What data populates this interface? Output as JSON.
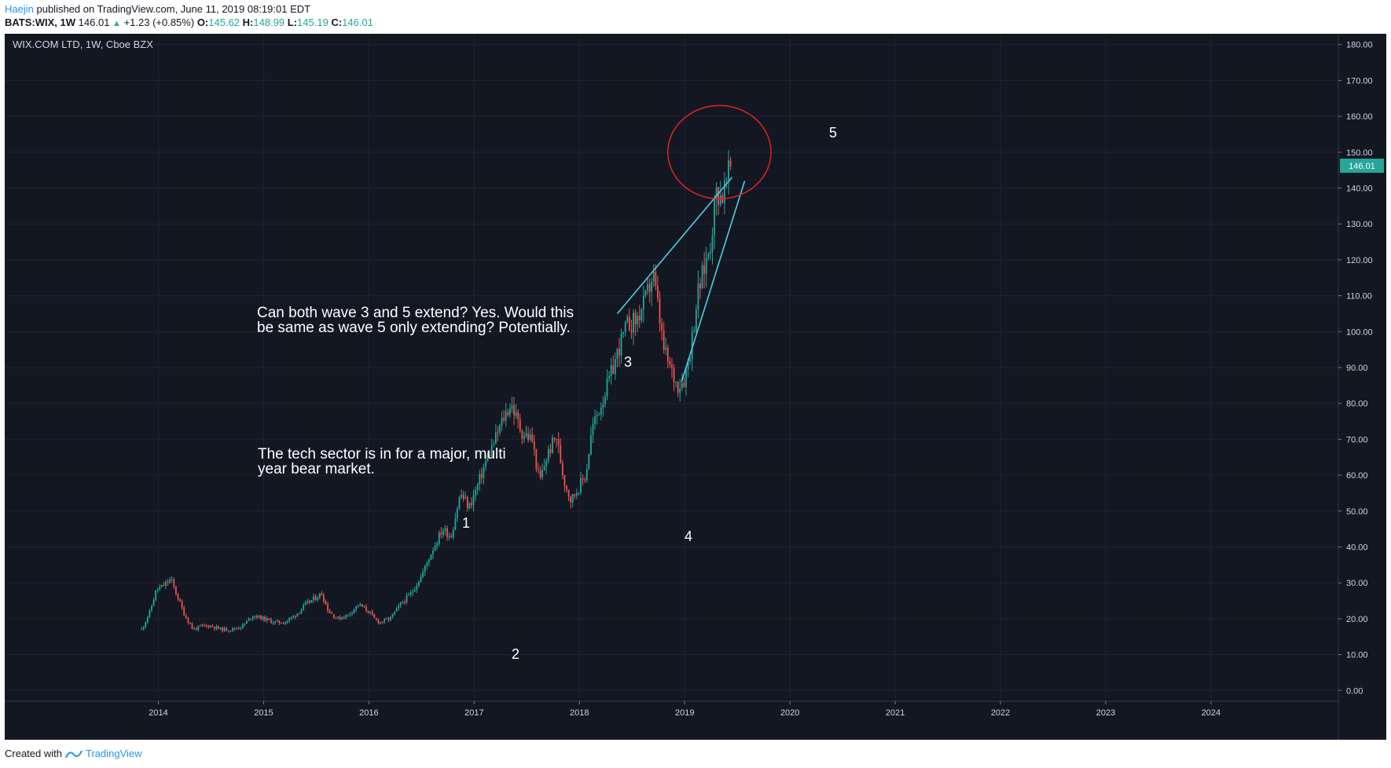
{
  "header": {
    "author": "Haejin",
    "published_text": "published on TradingView.com, June 11, 2019 08:19:01 EDT",
    "symbol": "BATS:WIX, 1W",
    "last_price": "146.01",
    "change_text": "+1.23 (+0.85%)",
    "o_label": "O:",
    "o_value": "145.62",
    "h_label": "H:",
    "h_value": "148.99",
    "l_label": "L:",
    "l_value": "145.19",
    "c_label": "C:",
    "c_value": "146.01"
  },
  "chart_legend": "WIX.COM LTD, 1W, Cboe BZX",
  "price_tag": "146.01",
  "annotations": {
    "wave_1": "1",
    "wave_2": "2",
    "wave_3": "3",
    "wave_4": "4",
    "wave_5": "5",
    "text_1_line_1": "Can both wave 3 and 5 extend? Yes. Would this",
    "text_1_line_2": "be same as wave 5 only extending? Potentially.",
    "text_2_line_1": "The tech sector is in for a major, multi",
    "text_2_line_2": "year bear market."
  },
  "footer": {
    "created_with": "Created with",
    "brand": "TradingView"
  },
  "colors": {
    "background": "#131722",
    "up": "#26a69a",
    "down": "#ef5350",
    "trendline": "#4dd0e1",
    "circle": "#e02424"
  },
  "chart_data": {
    "type": "candlestick",
    "title": "WIX.COM LTD, 1W, Cboe BZX",
    "x_ticks": [
      "2014",
      "2015",
      "2016",
      "2017",
      "2018",
      "2019",
      "2020",
      "2021",
      "2022",
      "2023",
      "2024"
    ],
    "y_ticks": [
      "0.00",
      "10.00",
      "20.00",
      "30.00",
      "40.00",
      "50.00",
      "60.00",
      "70.00",
      "80.00",
      "90.00",
      "100.00",
      "110.00",
      "120.00",
      "130.00",
      "140.00",
      "150.00",
      "160.00",
      "170.00",
      "180.00"
    ],
    "ylim": [
      -3,
      183
    ],
    "xlim": [
      2012.54,
      2025.21
    ],
    "price_path": [
      [
        2013.84,
        17
      ],
      [
        2013.92,
        22
      ],
      [
        2013.98,
        28
      ],
      [
        2014.04,
        29
      ],
      [
        2014.12,
        31
      ],
      [
        2014.17,
        27
      ],
      [
        2014.25,
        21
      ],
      [
        2014.33,
        17
      ],
      [
        2014.42,
        18
      ],
      [
        2014.5,
        18
      ],
      [
        2014.6,
        17
      ],
      [
        2014.7,
        17
      ],
      [
        2014.8,
        18
      ],
      [
        2014.9,
        21
      ],
      [
        2015.0,
        20
      ],
      [
        2015.1,
        19
      ],
      [
        2015.2,
        19
      ],
      [
        2015.3,
        21
      ],
      [
        2015.4,
        24
      ],
      [
        2015.5,
        26
      ],
      [
        2015.55,
        27
      ],
      [
        2015.62,
        22
      ],
      [
        2015.7,
        20
      ],
      [
        2015.8,
        21
      ],
      [
        2015.9,
        24
      ],
      [
        2016.0,
        22
      ],
      [
        2016.05,
        20
      ],
      [
        2016.1,
        19
      ],
      [
        2016.2,
        20
      ],
      [
        2016.3,
        24
      ],
      [
        2016.4,
        27
      ],
      [
        2016.5,
        32
      ],
      [
        2016.6,
        39
      ],
      [
        2016.7,
        45
      ],
      [
        2016.78,
        43
      ],
      [
        2016.87,
        55
      ],
      [
        2016.95,
        51
      ],
      [
        2017.02,
        56
      ],
      [
        2017.1,
        63
      ],
      [
        2017.2,
        70
      ],
      [
        2017.28,
        76
      ],
      [
        2017.35,
        80
      ],
      [
        2017.45,
        72
      ],
      [
        2017.55,
        70
      ],
      [
        2017.62,
        58
      ],
      [
        2017.7,
        66
      ],
      [
        2017.78,
        71
      ],
      [
        2017.85,
        59
      ],
      [
        2017.92,
        53
      ],
      [
        2018.0,
        57
      ],
      [
        2018.06,
        60
      ],
      [
        2018.12,
        73
      ],
      [
        2018.22,
        81
      ],
      [
        2018.3,
        88
      ],
      [
        2018.38,
        96
      ],
      [
        2018.46,
        102
      ],
      [
        2018.54,
        103
      ],
      [
        2018.62,
        108
      ],
      [
        2018.7,
        116
      ],
      [
        2018.75,
        106
      ],
      [
        2018.8,
        95
      ],
      [
        2018.86,
        90
      ],
      [
        2018.93,
        85
      ],
      [
        2019.0,
        87
      ],
      [
        2019.06,
        96
      ],
      [
        2019.12,
        110
      ],
      [
        2019.18,
        117
      ],
      [
        2019.24,
        124
      ],
      [
        2019.3,
        139
      ],
      [
        2019.36,
        138
      ],
      [
        2019.44,
        146
      ]
    ],
    "trendlines": [
      {
        "points": [
          [
            2018.36,
            105
          ],
          [
            2019.45,
            143
          ]
        ]
      },
      {
        "points": [
          [
            2018.97,
            86
          ],
          [
            2019.57,
            142
          ]
        ]
      }
    ],
    "annotation_circle": {
      "center": [
        2019.33,
        150
      ],
      "radius_years": 0.49,
      "radius_price": 13
    },
    "last_price": 146.01
  }
}
